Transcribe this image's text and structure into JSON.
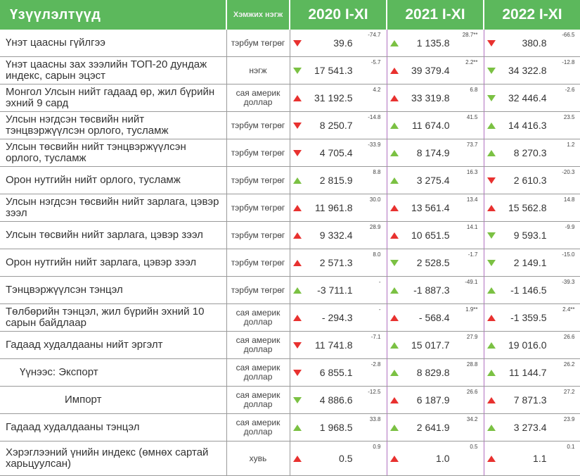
{
  "header": {
    "indicators": "Үзүүлэлтүүд",
    "unit": "Хэмжих нэгж",
    "years": [
      "2020 I-XI",
      "2021 I-XI",
      "2022 I-XI"
    ]
  },
  "colors": {
    "header_bg": "#5cb85c",
    "arrow_red": "#e8312f",
    "arrow_green": "#7bc143"
  },
  "rows": [
    {
      "name": "Үнэт цаасны гүйлгээ",
      "unit": "тэрбум төгрөг",
      "cells": [
        {
          "arrow": "down",
          "color": "red",
          "value": "39.6",
          "change": "-74.7"
        },
        {
          "arrow": "up",
          "color": "green",
          "value": "1 135.8",
          "change": "28.7**"
        },
        {
          "arrow": "down",
          "color": "red",
          "value": "380.8",
          "change": "-66.5"
        }
      ]
    },
    {
      "name": "Үнэт цаасны зах зээлийн ТОП-20 дундаж индекс, сарын эцэст",
      "unit": "нэгж",
      "cells": [
        {
          "arrow": "down",
          "color": "green",
          "value": "17 541.3",
          "change": "-5.7"
        },
        {
          "arrow": "up",
          "color": "red",
          "value": "39 379.4",
          "change": "2.2**"
        },
        {
          "arrow": "down",
          "color": "green",
          "value": "34 322.8",
          "change": "-12.8"
        }
      ]
    },
    {
      "name": "Монгол Улсын нийт гадаад өр, жил бүрийн эхний 9 сард",
      "unit": "сая америк доллар",
      "cells": [
        {
          "arrow": "up",
          "color": "red",
          "value": "31 192.5",
          "change": "4.2"
        },
        {
          "arrow": "up",
          "color": "red",
          "value": "33 319.8",
          "change": "6.8"
        },
        {
          "arrow": "down",
          "color": "green",
          "value": "32 446.4",
          "change": "-2.6"
        }
      ]
    },
    {
      "name": "Улсын нэгдсэн төсвийн нийт тэнцвэржүүлсэн орлого, тусламж",
      "unit": "тэрбум төгрөг",
      "cells": [
        {
          "arrow": "down",
          "color": "red",
          "value": "8 250.7",
          "change": "-14.8"
        },
        {
          "arrow": "up",
          "color": "green",
          "value": "11 674.0",
          "change": "41.5"
        },
        {
          "arrow": "up",
          "color": "green",
          "value": "14 416.3",
          "change": "23.5"
        }
      ]
    },
    {
      "name": "Улсын төсвийн нийт тэнцвэржүүлсэн орлого, тусламж",
      "unit": "тэрбум төгрөг",
      "cells": [
        {
          "arrow": "down",
          "color": "red",
          "value": "4 705.4",
          "change": "-33.9"
        },
        {
          "arrow": "up",
          "color": "green",
          "value": "8 174.9",
          "change": "73.7"
        },
        {
          "arrow": "up",
          "color": "green",
          "value": "8 270.3",
          "change": "1.2"
        }
      ]
    },
    {
      "name": "Орон нутгийн нийт орлого, тусламж",
      "unit": "тэрбум төгрөг",
      "cells": [
        {
          "arrow": "up",
          "color": "green",
          "value": "2 815.9",
          "change": "8.8"
        },
        {
          "arrow": "up",
          "color": "green",
          "value": "3 275.4",
          "change": "16.3"
        },
        {
          "arrow": "down",
          "color": "red",
          "value": "2 610.3",
          "change": "-20.3"
        }
      ]
    },
    {
      "name": "Улсын нэгдсэн төсвийн нийт зарлага, цэвэр зээл",
      "unit": "тэрбум төгрөг",
      "cells": [
        {
          "arrow": "up",
          "color": "red",
          "value": "11 961.8",
          "change": "30.0"
        },
        {
          "arrow": "up",
          "color": "red",
          "value": "13 561.4",
          "change": "13.4"
        },
        {
          "arrow": "up",
          "color": "red",
          "value": "15 562.8",
          "change": "14.8"
        }
      ]
    },
    {
      "name": "Улсын төсвийн нийт зарлага, цэвэр зээл",
      "unit": "тэрбум төгрөг",
      "cells": [
        {
          "arrow": "up",
          "color": "red",
          "value": "9 332.4",
          "change": "28.9"
        },
        {
          "arrow": "up",
          "color": "red",
          "value": "10 651.5",
          "change": "14.1"
        },
        {
          "arrow": "down",
          "color": "green",
          "value": "9 593.1",
          "change": "-9.9"
        }
      ]
    },
    {
      "name": "Орон нутгийн нийт зарлага, цэвэр зээл",
      "unit": "тэрбум төгрөг",
      "cells": [
        {
          "arrow": "up",
          "color": "red",
          "value": "2 571.3",
          "change": "8.0"
        },
        {
          "arrow": "down",
          "color": "green",
          "value": "2 528.5",
          "change": "-1.7"
        },
        {
          "arrow": "down",
          "color": "green",
          "value": "2 149.1",
          "change": "-15.0"
        }
      ]
    },
    {
      "name": "Тэнцвэржүүлсэн тэнцэл",
      "unit": "тэрбум төгрөг",
      "cells": [
        {
          "arrow": "up",
          "color": "green",
          "value": "-3 711.1",
          "change": "-"
        },
        {
          "arrow": "up",
          "color": "green",
          "value": "-1 887.3",
          "change": "-49.1"
        },
        {
          "arrow": "up",
          "color": "green",
          "value": "-1 146.5",
          "change": "-39.3"
        }
      ]
    },
    {
      "name": "Төлбөрийн тэнцэл, жил бүрийн эхний 10 сарын байдлаар",
      "unit": "сая америк доллар",
      "cells": [
        {
          "arrow": "up",
          "color": "red",
          "value": "- 294.3",
          "change": "-"
        },
        {
          "arrow": "up",
          "color": "red",
          "value": "- 568.4",
          "change": "1.9**"
        },
        {
          "arrow": "up",
          "color": "red",
          "value": "-1 359.5",
          "change": "2.4**"
        }
      ]
    },
    {
      "name": "Гадаад худалдааны нийт эргэлт",
      "unit": "сая америк доллар",
      "cells": [
        {
          "arrow": "down",
          "color": "red",
          "value": "11 741.8",
          "change": "-7.1"
        },
        {
          "arrow": "up",
          "color": "green",
          "value": "15 017.7",
          "change": "27.9"
        },
        {
          "arrow": "up",
          "color": "green",
          "value": "19 016.0",
          "change": "26.6"
        }
      ]
    },
    {
      "name": "Үүнээс: Экспорт",
      "unit": "сая америк доллар",
      "indent": "sub1",
      "cells": [
        {
          "arrow": "down",
          "color": "red",
          "value": "6 855.1",
          "change": "-2.8"
        },
        {
          "arrow": "up",
          "color": "green",
          "value": "8 829.8",
          "change": "28.8"
        },
        {
          "arrow": "up",
          "color": "green",
          "value": "11 144.7",
          "change": "26.2"
        }
      ]
    },
    {
      "name": "Импорт",
      "unit": "сая америк доллар",
      "indent": "sub2",
      "cells": [
        {
          "arrow": "down",
          "color": "green",
          "value": "4 886.6",
          "change": "-12.5"
        },
        {
          "arrow": "up",
          "color": "red",
          "value": "6 187.9",
          "change": "26.6"
        },
        {
          "arrow": "up",
          "color": "red",
          "value": "7 871.3",
          "change": "27.2"
        }
      ]
    },
    {
      "name": "Гадаад худалдааны тэнцэл",
      "unit": "сая америк доллар",
      "cells": [
        {
          "arrow": "up",
          "color": "green",
          "value": "1 968.5",
          "change": "33.8"
        },
        {
          "arrow": "up",
          "color": "green",
          "value": "2 641.9",
          "change": "34.2"
        },
        {
          "arrow": "up",
          "color": "green",
          "value": "3 273.4",
          "change": "23.9"
        }
      ]
    },
    {
      "name": "Хэрэглээний үнийн индекс (өмнөх сартай харьцуулсан)",
      "unit": "хувь",
      "tall": true,
      "cells": [
        {
          "arrow": "up",
          "color": "red",
          "value": "0.5",
          "change": "0.9"
        },
        {
          "arrow": "up",
          "color": "red",
          "value": "1.0",
          "change": "0.5"
        },
        {
          "arrow": "up",
          "color": "red",
          "value": "1.1",
          "change": "0.1"
        }
      ]
    }
  ]
}
